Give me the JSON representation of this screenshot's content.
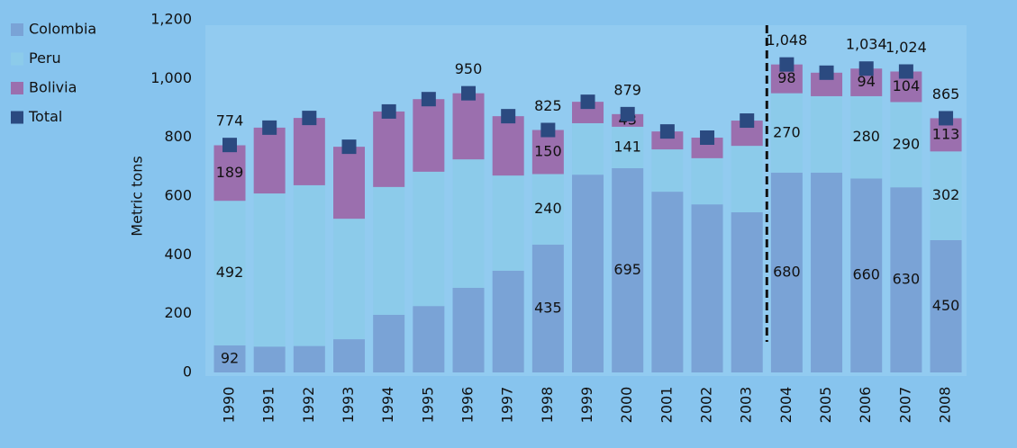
{
  "chart_data": {
    "type": "bar",
    "stacked": true,
    "y_label": "Metric tons",
    "categories": [
      "1990",
      "1991",
      "1992",
      "1993",
      "1994",
      "1995",
      "1996",
      "1997",
      "1998",
      "1999",
      "2000",
      "2001",
      "2002",
      "2003",
      "2004",
      "2005",
      "2006",
      "2007",
      "2008"
    ],
    "series": [
      {
        "name": "Colombia",
        "color": "#7aa3d6",
        "values": [
          92,
          88,
          90,
          113,
          196,
          226,
          288,
          346,
          435,
          673,
          695,
          615,
          572,
          545,
          680,
          680,
          660,
          630,
          450
        ],
        "value_labels": [
          "92",
          null,
          null,
          null,
          null,
          null,
          null,
          null,
          "435",
          null,
          "695",
          null,
          null,
          null,
          "680",
          null,
          "660",
          "630",
          "450"
        ]
      },
      {
        "name": "Peru",
        "color": "#8ccbea",
        "values": [
          492,
          521,
          547,
          410,
          435,
          457,
          437,
          324,
          240,
          175,
          141,
          144,
          157,
          226,
          270,
          260,
          280,
          290,
          302
        ],
        "value_labels": [
          "492",
          null,
          null,
          null,
          null,
          null,
          null,
          null,
          "240",
          null,
          "141",
          null,
          null,
          null,
          "270",
          null,
          "280",
          "290",
          "302"
        ]
      },
      {
        "name": "Bolivia",
        "color": "#9b6fae",
        "values": [
          189,
          224,
          229,
          245,
          257,
          247,
          225,
          202,
          150,
          73,
          43,
          61,
          70,
          86,
          98,
          80,
          94,
          104,
          113
        ],
        "value_labels": [
          "189",
          null,
          null,
          null,
          null,
          null,
          null,
          null,
          "150",
          null,
          "43",
          null,
          null,
          null,
          "98",
          null,
          "94",
          "104",
          "113"
        ]
      },
      {
        "name": "Total",
        "color": "#2b4a80",
        "type": "marker",
        "values": [
          774,
          833,
          866,
          768,
          888,
          930,
          950,
          872,
          825,
          921,
          879,
          820,
          799,
          857,
          1048,
          1020,
          1034,
          1024,
          865
        ],
        "value_labels": [
          "774",
          null,
          null,
          null,
          null,
          null,
          "950",
          null,
          "825",
          null,
          "879",
          null,
          null,
          null,
          "1,048",
          null,
          "1,034",
          "1,024",
          "865"
        ]
      }
    ],
    "ylim": [
      0,
      1200
    ],
    "yticks": [
      0,
      200,
      400,
      600,
      800,
      {
        "value": 1000,
        "label": "1,000"
      },
      {
        "value": 1200,
        "label": "1,200"
      }
    ]
  }
}
